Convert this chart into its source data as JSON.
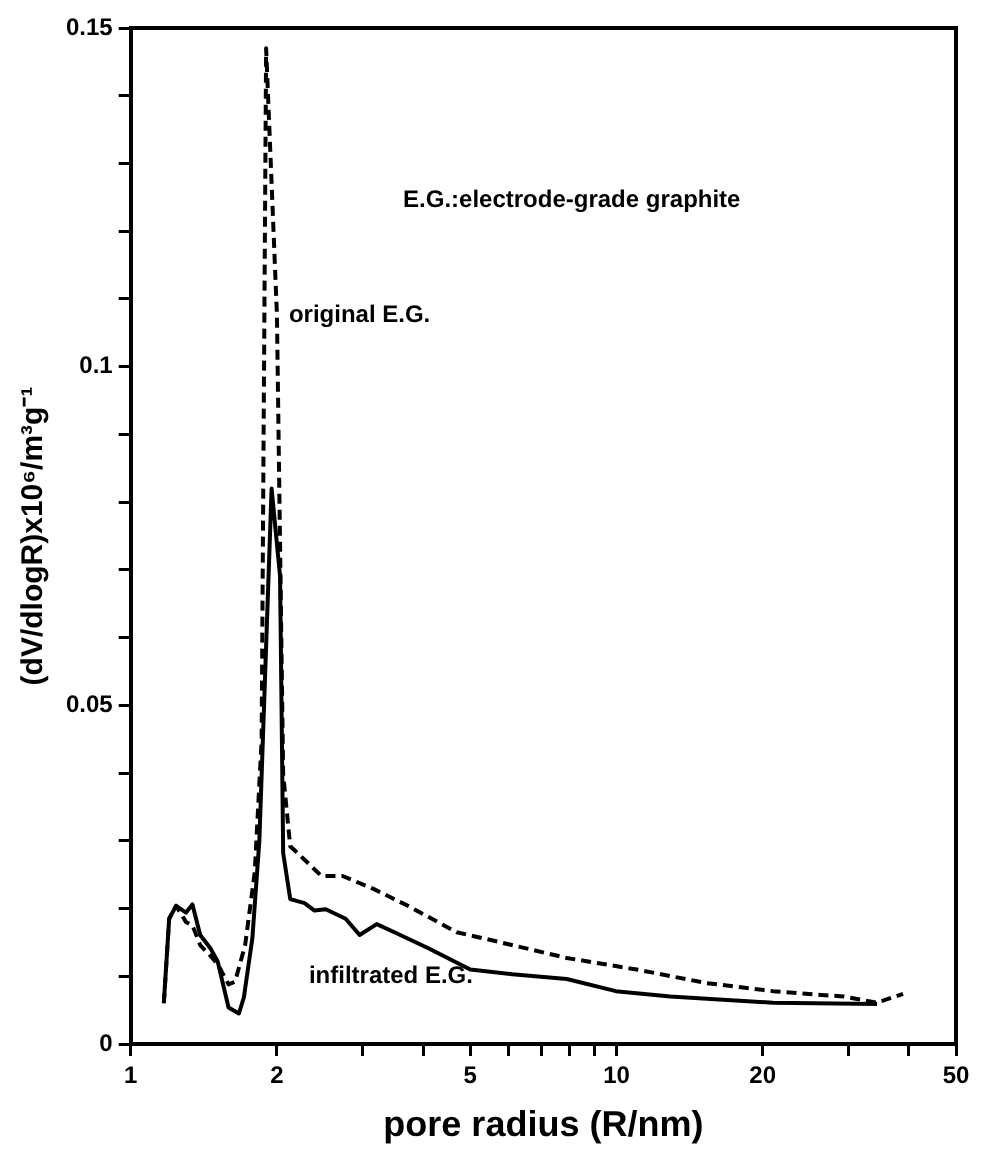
{
  "chart_data": {
    "type": "line",
    "xlabel": "pore radius (R/nm)",
    "ylabel": "(dV/dlogR)x10⁶/m³g⁻¹",
    "log": "x",
    "xlim": [
      1,
      50
    ],
    "xticks": [
      1,
      2,
      {
        "value": 3,
        "label": null
      },
      {
        "value": 4,
        "label": null
      },
      5,
      {
        "value": 6,
        "label": null
      },
      {
        "value": 7,
        "label": null
      },
      {
        "value": 8,
        "label": null
      },
      {
        "value": 9,
        "label": null
      },
      10,
      20,
      {
        "value": 30,
        "label": null
      },
      {
        "value": 40,
        "label": null
      },
      50
    ],
    "ylim": [
      0,
      0.15
    ],
    "yticks": [
      0,
      {
        "value": 0.01,
        "label": null
      },
      {
        "value": 0.02,
        "label": null
      },
      {
        "value": 0.03,
        "label": null
      },
      {
        "value": 0.04,
        "label": null
      },
      0.05,
      {
        "value": 0.06,
        "label": null
      },
      {
        "value": 0.07,
        "label": null
      },
      {
        "value": 0.08,
        "label": null
      },
      {
        "value": 0.09,
        "label": null
      },
      0.1,
      {
        "value": 0.11,
        "label": null
      },
      {
        "value": 0.12,
        "label": null
      },
      {
        "value": 0.13,
        "label": null
      },
      {
        "value": 0.14,
        "label": null
      },
      0.15
    ],
    "grid": false,
    "legend": false,
    "marker": "none",
    "annotations": [
      "E.G.:electrode-grade graphite"
    ],
    "series": [
      {
        "name": "original E.G.",
        "color": "#000000",
        "line_style": "dashed",
        "x": [
          1.17,
          1.2,
          1.24,
          1.3,
          1.34,
          1.39,
          1.46,
          1.51,
          1.59,
          1.64,
          1.72,
          1.8,
          1.86,
          1.9,
          2.0,
          2.06,
          2.13,
          2.28,
          2.47,
          2.73,
          3.16,
          3.72,
          4.69,
          5.7,
          7.9,
          11.0,
          15.3,
          21,
          29.4,
          34.4,
          38.9
        ],
        "values": [
          0.006,
          0.0185,
          0.0204,
          0.018,
          0.0175,
          0.0146,
          0.013,
          0.0118,
          0.0088,
          0.0092,
          0.0146,
          0.0253,
          0.0448,
          0.147,
          0.1076,
          0.0398,
          0.0292,
          0.0272,
          0.0248,
          0.0248,
          0.0229,
          0.0204,
          0.0165,
          0.0151,
          0.0127,
          0.011,
          0.009,
          0.0078,
          0.007,
          0.0061,
          0.0074
        ]
      },
      {
        "name": "infiltrated E.G.",
        "color": "#000000",
        "line_style": "solid",
        "x": [
          1.17,
          1.2,
          1.24,
          1.3,
          1.34,
          1.39,
          1.46,
          1.51,
          1.59,
          1.67,
          1.71,
          1.78,
          1.84,
          1.95,
          2.03,
          2.06,
          2.13,
          2.28,
          2.39,
          2.52,
          2.77,
          2.96,
          3.21,
          3.49,
          4.11,
          5.0,
          6.1,
          7.9,
          9.97,
          12.9,
          21,
          34.4
        ],
        "values": [
          0.0061,
          0.0185,
          0.0204,
          0.0194,
          0.0206,
          0.0161,
          0.0141,
          0.0122,
          0.0054,
          0.0045,
          0.0069,
          0.0156,
          0.03,
          0.082,
          0.069,
          0.0282,
          0.0214,
          0.0208,
          0.0197,
          0.0199,
          0.0185,
          0.0161,
          0.0177,
          0.0165,
          0.0141,
          0.011,
          0.0103,
          0.0096,
          0.0078,
          0.007,
          0.0061,
          0.0059
        ]
      }
    ]
  }
}
